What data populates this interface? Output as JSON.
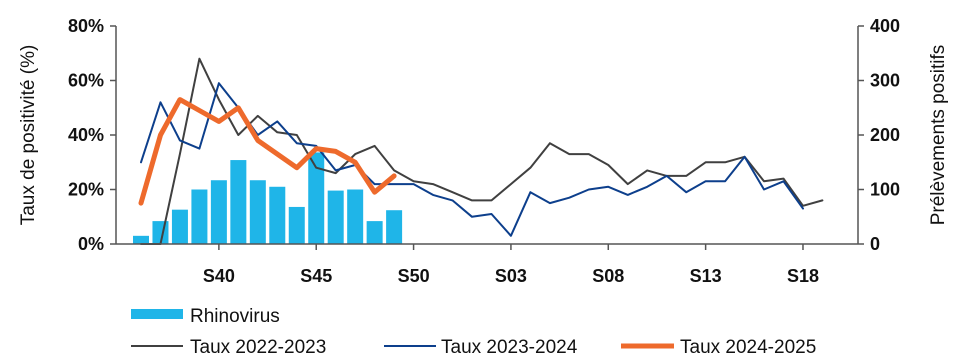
{
  "chart_data": {
    "type": "bar+line",
    "x_labels": [
      "S40",
      "S45",
      "S50",
      "S03",
      "S08",
      "S13",
      "S18"
    ],
    "y_left": {
      "label": "Taux de positivité (%)",
      "ticks": [
        "0%",
        "20%",
        "40%",
        "60%",
        "80%"
      ],
      "range": [
        0,
        80
      ]
    },
    "y_right": {
      "label": "Prélèvements positifs",
      "ticks": [
        "0",
        "100",
        "200",
        "300",
        "400"
      ],
      "range": [
        0,
        400
      ]
    },
    "colors": {
      "bars": "#1fb5e8",
      "series_2022": "#404040",
      "series_2023": "#0d3f8c",
      "series_2024": "#ee6a2c"
    },
    "bars": {
      "name": "Rhinovirus",
      "start_week_index": 0,
      "values": [
        15,
        42,
        63,
        100,
        117,
        154,
        117,
        105,
        68,
        168,
        98,
        100,
        42,
        62
      ]
    },
    "series": [
      {
        "name": "Taux 2022-2023",
        "values": [
          0,
          0,
          33,
          68,
          53,
          40,
          47,
          41,
          40,
          28,
          26,
          33,
          36,
          27,
          23,
          22,
          19,
          16,
          16,
          22,
          28,
          37,
          33,
          33,
          29,
          22,
          27,
          25,
          25,
          30,
          30,
          32,
          23,
          24,
          14,
          16
        ]
      },
      {
        "name": "Taux 2023-2024",
        "values": [
          30,
          52,
          38,
          35,
          59,
          50,
          40,
          45,
          37,
          36,
          27,
          29,
          22,
          22,
          22,
          18,
          16,
          10,
          11,
          3,
          19,
          15,
          17,
          20,
          21,
          18,
          21,
          25,
          19,
          23,
          23,
          32,
          20,
          23,
          13
        ]
      },
      {
        "name": "Taux 2024-2025",
        "values": [
          15,
          40,
          53,
          49,
          45,
          50,
          38,
          33,
          28,
          35,
          34,
          30,
          19,
          25
        ]
      }
    ]
  }
}
